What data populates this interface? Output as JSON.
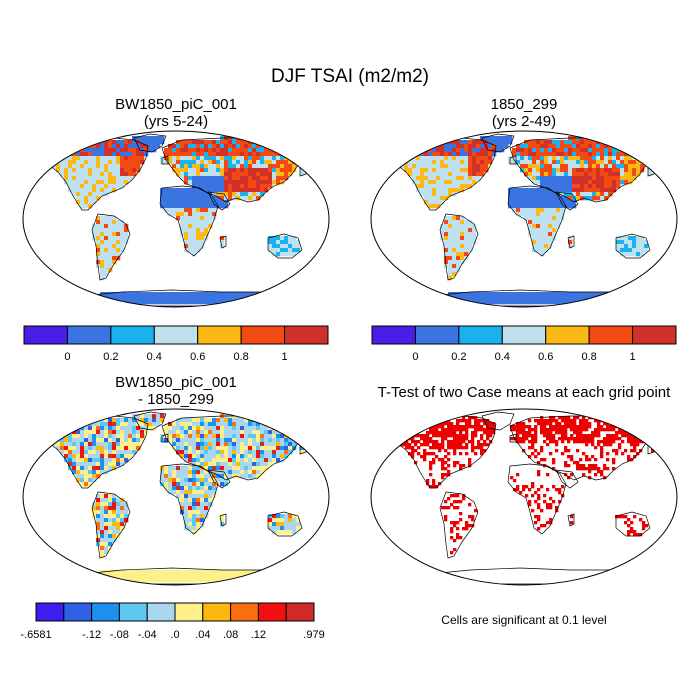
{
  "chart_data": {
    "type": "heatmap",
    "title": "DJF TSAI (m2/m2)",
    "panels": [
      {
        "title_line1": "BW1850_piC_001",
        "title_line2": "(yrs 5-24)",
        "colorbar": {
          "labels": [
            "0",
            "0.2",
            "0.4",
            "0.6",
            "0.8",
            "1"
          ],
          "colors": [
            "#4a1de8",
            "#3a74e0",
            "#1ab2ee",
            "#bfe1ef",
            "#fcb815",
            "#f24a12",
            "#d1302a"
          ]
        }
      },
      {
        "title_line1": "1850_299",
        "title_line2": "(yrs 2-49)",
        "colorbar": {
          "labels": [
            "0",
            "0.2",
            "0.4",
            "0.6",
            "0.8",
            "1"
          ],
          "colors": [
            "#4a1de8",
            "#3a74e0",
            "#1ab2ee",
            "#bfe1ef",
            "#fcb815",
            "#f24a12",
            "#d1302a"
          ]
        }
      },
      {
        "title_line1": "BW1850_piC_001",
        "title_line2": "- 1850_299",
        "colorbar": {
          "labels": [
            "-.6581",
            "-.12",
            "-.08",
            "-.04",
            ".0",
            ".04",
            ".08",
            ".12",
            ".979"
          ],
          "colors": [
            "#3d1ef0",
            "#2e62e6",
            "#1e90f0",
            "#5ec7f2",
            "#aad7ee",
            "#fdf08a",
            "#fcb810",
            "#fa7010",
            "#f41010",
            "#d02a2a"
          ]
        }
      },
      {
        "title": "T-Test of two Case means at each grid point",
        "note": "Cells are significant at 0.1 level",
        "color": "#ee0000"
      }
    ]
  }
}
